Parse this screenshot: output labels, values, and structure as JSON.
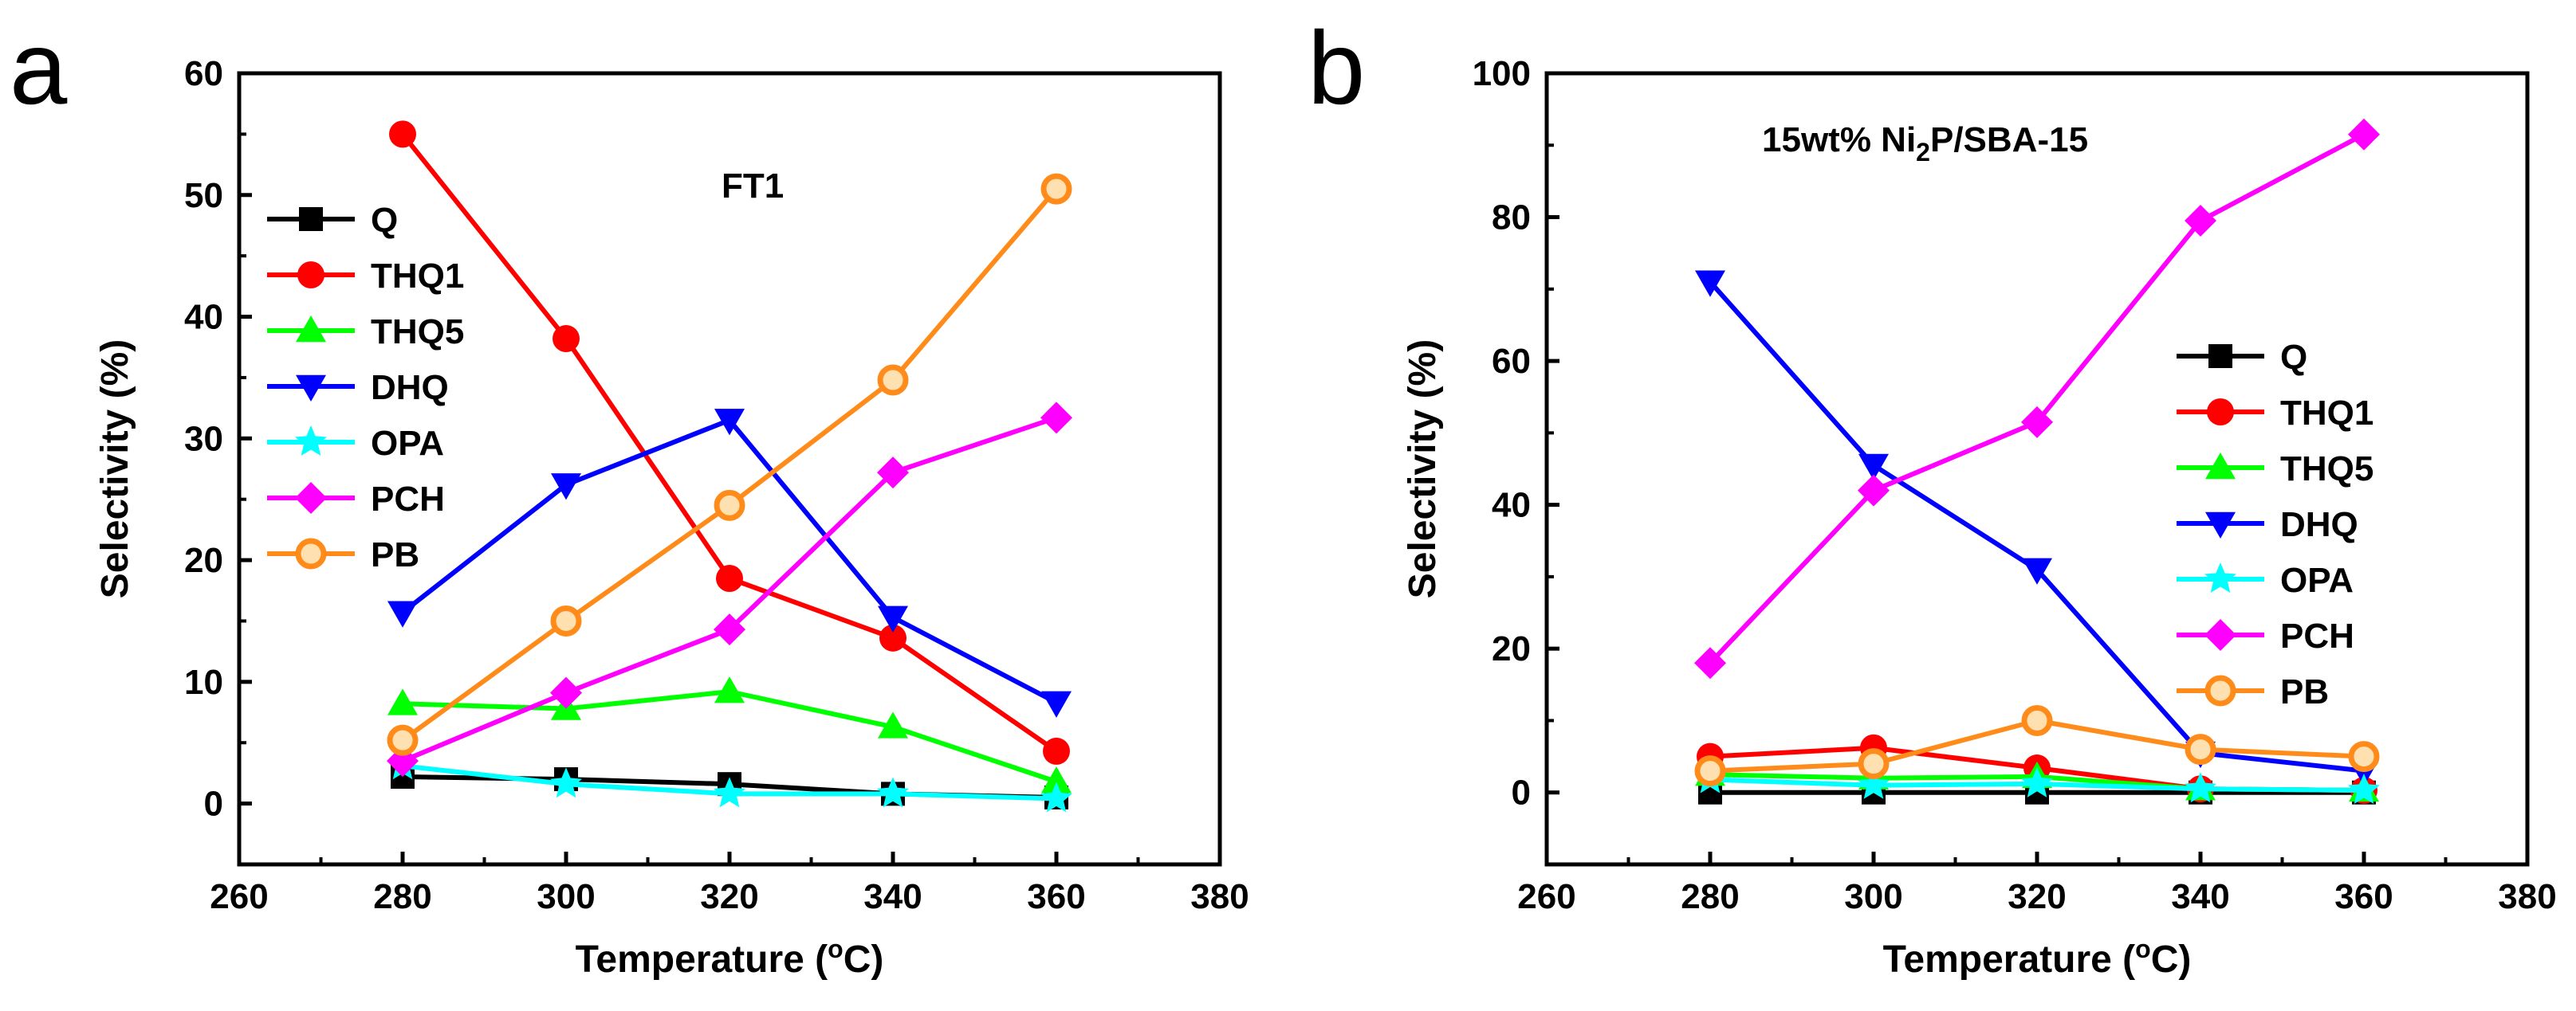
{
  "chart_data": [
    {
      "type": "line",
      "panel_label": "a",
      "annotation": "FT1",
      "xlabel": "Temperature (°C)",
      "ylabel": "Selectivity (%)",
      "xlim": [
        260,
        380
      ],
      "ylim": [
        -5,
        60
      ],
      "xticks": [
        260,
        280,
        300,
        320,
        340,
        360,
        380
      ],
      "yticks": [
        0,
        10,
        20,
        30,
        40,
        50,
        60
      ],
      "legend_position": "left",
      "x": [
        280,
        300,
        320,
        340,
        360
      ],
      "series": [
        {
          "name": "Q",
          "color": "#000000",
          "marker": "square",
          "values": [
            2.2,
            2.0,
            1.6,
            0.8,
            0.5
          ]
        },
        {
          "name": "THQ1",
          "color": "#ff0000",
          "marker": "circle",
          "values": [
            55,
            38.2,
            18.5,
            13.6,
            4.3
          ]
        },
        {
          "name": "THQ5",
          "color": "#00ff00",
          "marker": "triangle-up",
          "values": [
            8.2,
            7.8,
            9.2,
            6.3,
            1.8
          ]
        },
        {
          "name": "DHQ",
          "color": "#0000ff",
          "marker": "triangle-down",
          "values": [
            15.7,
            26.2,
            31.5,
            15.3,
            8.3
          ]
        },
        {
          "name": "OPA",
          "color": "#00ffff",
          "marker": "star",
          "values": [
            3.1,
            1.6,
            0.8,
            0.8,
            0.4
          ]
        },
        {
          "name": "PCH",
          "color": "#ff00ff",
          "marker": "diamond",
          "values": [
            3.5,
            9.1,
            14.3,
            27.2,
            31.7
          ]
        },
        {
          "name": "PB",
          "color": "#ff8c1a",
          "marker": "circle-open",
          "values": [
            5.2,
            15.0,
            24.5,
            34.8,
            50.5
          ]
        }
      ]
    },
    {
      "type": "line",
      "panel_label": "b",
      "annotation": "15wt% Ni2P/SBA-15",
      "xlabel": "Temperature (°C)",
      "ylabel": "Selectivity (%)",
      "xlim": [
        260,
        380
      ],
      "ylim": [
        -10,
        100
      ],
      "xticks": [
        260,
        280,
        300,
        320,
        340,
        360,
        380
      ],
      "yticks": [
        0,
        20,
        40,
        60,
        80,
        100
      ],
      "legend_position": "right",
      "x": [
        280,
        300,
        320,
        340,
        360
      ],
      "series": [
        {
          "name": "Q",
          "color": "#000000",
          "marker": "square",
          "values": [
            0,
            0,
            0,
            0,
            0
          ]
        },
        {
          "name": "THQ1",
          "color": "#ff0000",
          "marker": "circle",
          "values": [
            5,
            6.2,
            3.4,
            0.5,
            0.3
          ]
        },
        {
          "name": "THQ5",
          "color": "#00ff00",
          "marker": "triangle-up",
          "values": [
            2.5,
            2.0,
            2.2,
            0.5,
            0.3
          ]
        },
        {
          "name": "DHQ",
          "color": "#0000ff",
          "marker": "triangle-down",
          "values": [
            71,
            45.5,
            31,
            5.5,
            3
          ]
        },
        {
          "name": "OPA",
          "color": "#00ffff",
          "marker": "star",
          "values": [
            1.8,
            1.0,
            1.2,
            0.5,
            0.3
          ]
        },
        {
          "name": "PCH",
          "color": "#ff00ff",
          "marker": "diamond",
          "values": [
            18,
            42,
            51.5,
            79.5,
            91.5
          ]
        },
        {
          "name": "PB",
          "color": "#ff8c1a",
          "marker": "circle-open",
          "values": [
            3,
            4,
            10,
            6,
            5
          ]
        }
      ]
    }
  ]
}
